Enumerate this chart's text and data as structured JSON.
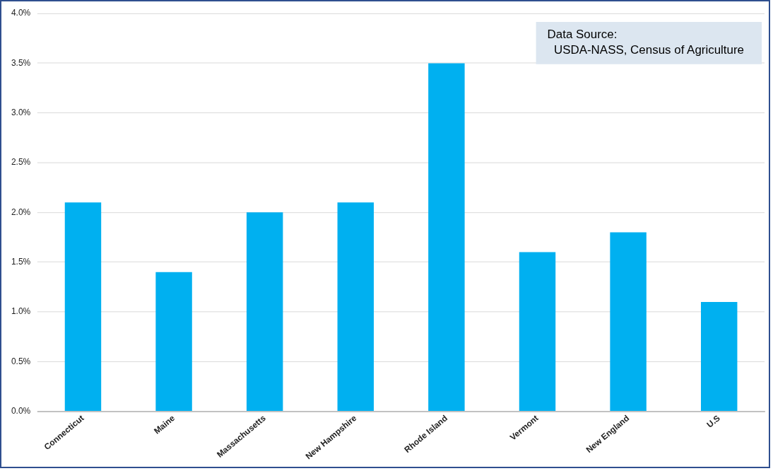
{
  "chart_data": {
    "type": "bar",
    "categories": [
      "Connecticut",
      "Maine",
      "Massachusetts",
      "New Hampshire",
      "Rhode Island",
      "Vermont",
      "New England",
      "U.S"
    ],
    "values": [
      2.1,
      1.4,
      2.0,
      2.1,
      3.5,
      1.6,
      1.8,
      1.1
    ],
    "color": "#00b0f0",
    "ylim": [
      0,
      4
    ],
    "yticks": [
      {
        "value": 0,
        "label": "0.0%"
      },
      {
        "value": 0.5,
        "label": "0.5%"
      },
      {
        "value": 1,
        "label": "1.0%"
      },
      {
        "value": 1.5,
        "label": "1.5%"
      },
      {
        "value": 2,
        "label": "2.0%"
      },
      {
        "value": 2.5,
        "label": "2.5%"
      },
      {
        "value": 3,
        "label": "3.0%"
      },
      {
        "value": 3.5,
        "label": "3.5%"
      },
      {
        "value": 4,
        "label": "4.0%"
      }
    ],
    "grid": "y",
    "legend": false,
    "annotations": [
      "Data Source:\n  USDA-NASS, Census of Agriculture"
    ]
  }
}
